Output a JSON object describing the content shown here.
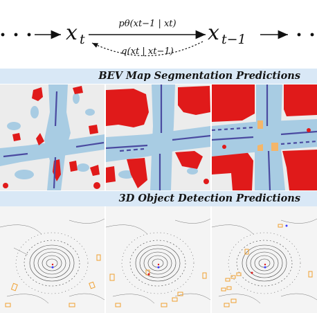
{
  "equation": {
    "x_t_base": "x",
    "x_t_sub": "t",
    "x_tm1_base": "x",
    "x_tm1_sub": "t−1",
    "reverse_label": "pθ(xt−1 | xt)",
    "forward_label": "q(xt | xt−1)"
  },
  "sections": {
    "bev_title": "BEV Map Segmentation Predictions",
    "det_title": "3D Object Detection Predictions"
  },
  "colors": {
    "banner_bg": "#d9e8f6",
    "road": "#a8cce3",
    "divider": "#4a4aa0",
    "vehicle": "#e01a1a",
    "crossing": "#f4b66a",
    "background": "#ececec",
    "box_orange": "#f0a030"
  }
}
